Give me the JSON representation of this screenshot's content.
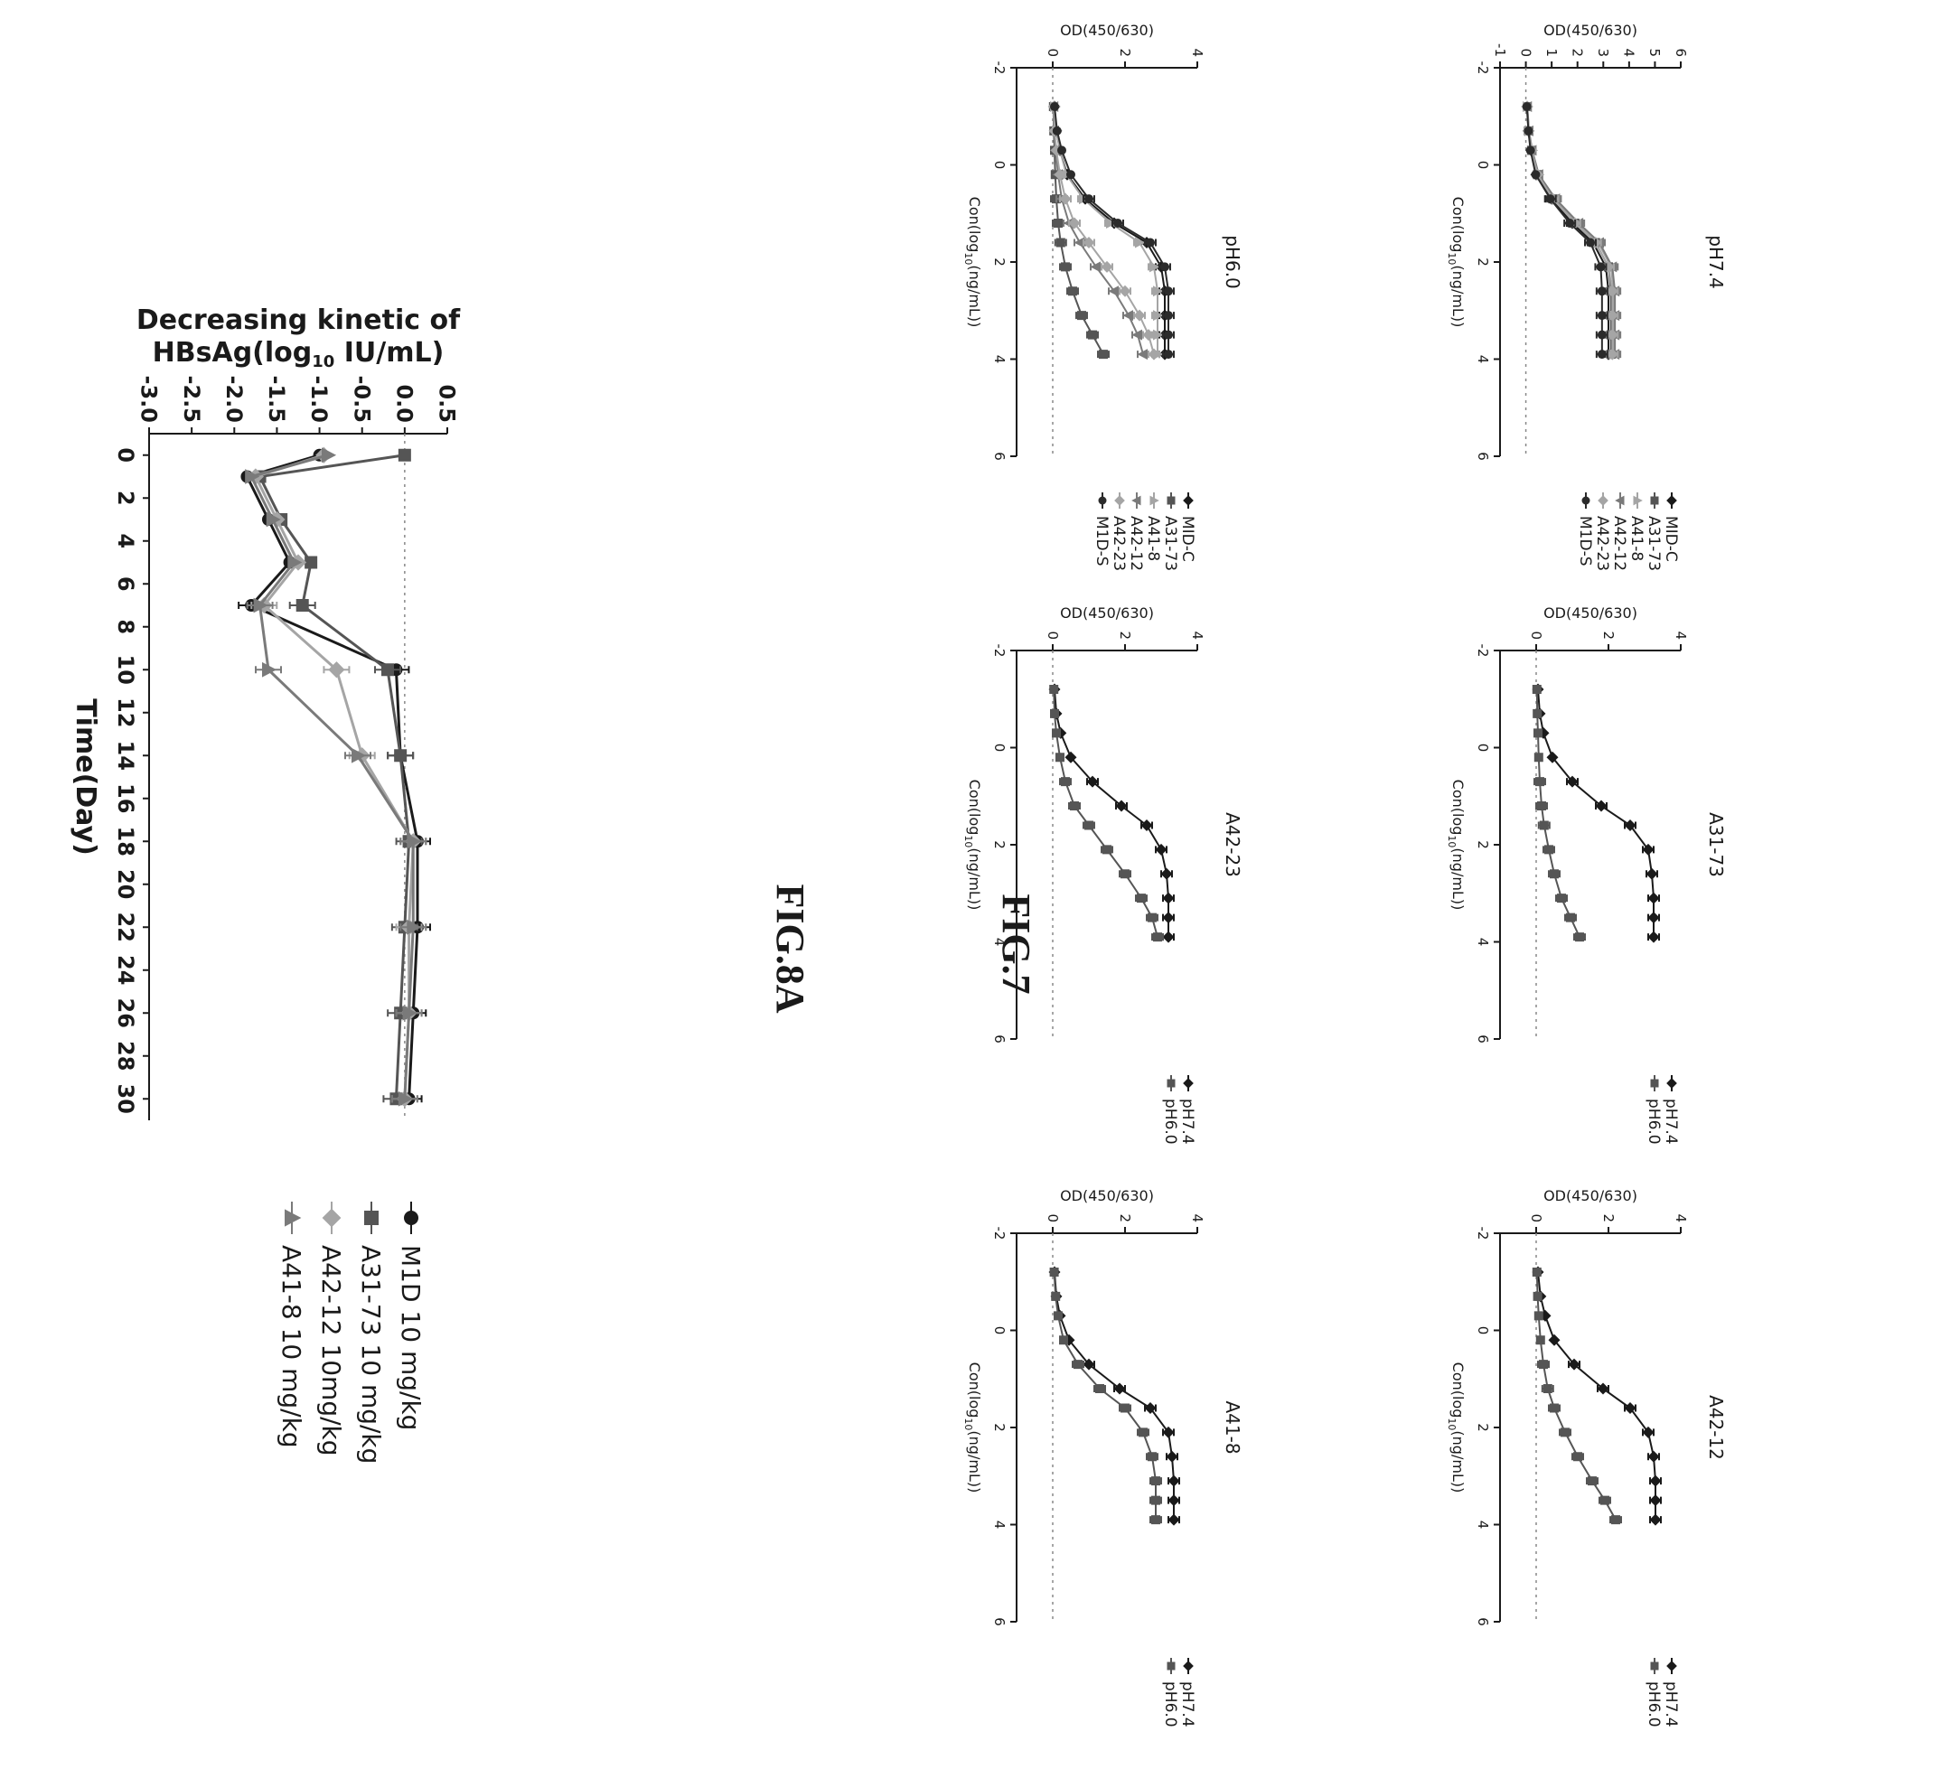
{
  "figures": [
    {
      "id": "fig7",
      "caption": "FIG.7"
    },
    {
      "id": "fig8a",
      "caption": "FIG.8A"
    }
  ],
  "colors": {
    "ink": "#1a1a1a",
    "dark": "#2b2b2b",
    "mid": "#555555",
    "gray": "#7a7a7a",
    "light": "#a5a5a5",
    "zero_line": "#888888"
  },
  "chart_data": [
    {
      "id": "pH7.4",
      "figure": "FIG.7",
      "type": "line",
      "title": "pH7.4",
      "xlabel": "Con(log10(ng/mL))",
      "ylabel": "OD(450/630)",
      "xlim": [
        -2,
        6
      ],
      "ylim": [
        -1,
        6
      ],
      "xticks": [
        "-2",
        "0",
        "2",
        "4",
        "6"
      ],
      "yticks": [
        "-1",
        "0",
        "1",
        "2",
        "3",
        "4",
        "5",
        "6"
      ],
      "x": [
        -1.2,
        -0.7,
        -0.3,
        0.2,
        0.7,
        1.2,
        1.6,
        2.1,
        2.6,
        3.1,
        3.5,
        3.9
      ],
      "series": [
        {
          "name": "MID-C",
          "marker": "diamond",
          "color": "#1a1a1a",
          "values": [
            0.05,
            0.1,
            0.2,
            0.4,
            1.0,
            1.8,
            2.6,
            3.1,
            3.2,
            3.2,
            3.2,
            3.2
          ]
        },
        {
          "name": "A31-73",
          "marker": "square",
          "color": "#555555",
          "values": [
            0.05,
            0.1,
            0.22,
            0.45,
            1.05,
            1.9,
            2.7,
            3.2,
            3.3,
            3.3,
            3.3,
            3.3
          ]
        },
        {
          "name": "A41-8",
          "marker": "triangle-up",
          "color": "#a5a5a5",
          "values": [
            0.05,
            0.12,
            0.25,
            0.5,
            1.1,
            2.0,
            2.8,
            3.3,
            3.4,
            3.4,
            3.4,
            3.4
          ]
        },
        {
          "name": "A42-12",
          "marker": "triangle-down",
          "color": "#7a7a7a",
          "values": [
            0.06,
            0.12,
            0.24,
            0.5,
            1.15,
            2.05,
            2.85,
            3.35,
            3.45,
            3.45,
            3.45,
            3.45
          ]
        },
        {
          "name": "A42-23",
          "marker": "diamond",
          "color": "#a5a5a5",
          "values": [
            0.05,
            0.11,
            0.22,
            0.46,
            1.05,
            1.9,
            2.7,
            3.2,
            3.35,
            3.35,
            3.35,
            3.35
          ]
        },
        {
          "name": "M1D-S",
          "marker": "circle",
          "color": "#2b2b2b",
          "values": [
            0.04,
            0.1,
            0.18,
            0.38,
            0.95,
            1.7,
            2.5,
            2.9,
            2.95,
            2.95,
            2.95,
            2.95
          ]
        }
      ]
    },
    {
      "id": "pH6.0",
      "figure": "FIG.7",
      "type": "line",
      "title": "pH6.0",
      "xlabel": "Con(log10(ng/mL))",
      "ylabel": "OD(450/630)",
      "xlim": [
        -2,
        6
      ],
      "ylim": [
        -1,
        4
      ],
      "xticks": [
        "-2",
        "0",
        "2",
        "4",
        "6"
      ],
      "yticks": [
        "0",
        "2",
        "4"
      ],
      "x": [
        -1.2,
        -0.7,
        -0.3,
        0.2,
        0.7,
        1.2,
        1.6,
        2.1,
        2.6,
        3.1,
        3.5,
        3.9
      ],
      "series": [
        {
          "name": "MID-C",
          "marker": "diamond",
          "color": "#1a1a1a",
          "values": [
            0.05,
            0.1,
            0.2,
            0.4,
            0.9,
            1.7,
            2.6,
            3.0,
            3.1,
            3.1,
            3.1,
            3.1
          ]
        },
        {
          "name": "A31-73",
          "marker": "square",
          "color": "#555555",
          "values": [
            0.02,
            0.03,
            0.05,
            0.07,
            0.1,
            0.15,
            0.22,
            0.35,
            0.55,
            0.8,
            1.1,
            1.4
          ]
        },
        {
          "name": "A41-8",
          "marker": "triangle-up",
          "color": "#a5a5a5",
          "values": [
            0.05,
            0.1,
            0.2,
            0.38,
            0.85,
            1.6,
            2.4,
            2.8,
            2.9,
            2.9,
            2.9,
            2.9
          ]
        },
        {
          "name": "A42-12",
          "marker": "triangle-down",
          "color": "#7a7a7a",
          "values": [
            0.03,
            0.05,
            0.08,
            0.15,
            0.25,
            0.45,
            0.75,
            1.2,
            1.7,
            2.1,
            2.35,
            2.5
          ]
        },
        {
          "name": "A42-23",
          "marker": "diamond",
          "color": "#a5a5a5",
          "values": [
            0.03,
            0.05,
            0.1,
            0.2,
            0.35,
            0.6,
            1.0,
            1.5,
            2.0,
            2.4,
            2.65,
            2.8
          ]
        },
        {
          "name": "M1D-S",
          "marker": "circle",
          "color": "#2b2b2b",
          "values": [
            0.05,
            0.12,
            0.25,
            0.5,
            1.0,
            1.8,
            2.7,
            3.1,
            3.2,
            3.2,
            3.2,
            3.2
          ]
        }
      ]
    },
    {
      "id": "A31-73",
      "figure": "FIG.7",
      "type": "line",
      "title": "A31-73",
      "xlabel": "Con(log10(ng/mL))",
      "ylabel": "OD(450/630)",
      "xlim": [
        -2,
        6
      ],
      "ylim": [
        -1,
        4
      ],
      "xticks": [
        "-2",
        "0",
        "2",
        "4",
        "6"
      ],
      "yticks": [
        "0",
        "2",
        "4"
      ],
      "x": [
        -1.2,
        -0.7,
        -0.3,
        0.2,
        0.7,
        1.2,
        1.6,
        2.1,
        2.6,
        3.1,
        3.5,
        3.9
      ],
      "series": [
        {
          "name": "pH7.4",
          "marker": "diamond",
          "color": "#1a1a1a",
          "values": [
            0.05,
            0.1,
            0.2,
            0.45,
            1.0,
            1.8,
            2.6,
            3.1,
            3.2,
            3.25,
            3.25,
            3.25
          ]
        },
        {
          "name": "pH6.0",
          "marker": "square",
          "color": "#555555",
          "values": [
            0.02,
            0.03,
            0.05,
            0.07,
            0.1,
            0.15,
            0.22,
            0.35,
            0.5,
            0.7,
            0.95,
            1.2
          ]
        }
      ]
    },
    {
      "id": "A42-23",
      "figure": "FIG.7",
      "type": "line",
      "title": "A42-23",
      "xlabel": "Con(log10(ng/mL))",
      "ylabel": "OD(450/630)",
      "xlim": [
        -2,
        6
      ],
      "ylim": [
        -1,
        4
      ],
      "xticks": [
        "-2",
        "0",
        "2",
        "4",
        "6"
      ],
      "yticks": [
        "0",
        "2",
        "4"
      ],
      "x": [
        -1.2,
        -0.7,
        -0.3,
        0.2,
        0.7,
        1.2,
        1.6,
        2.1,
        2.6,
        3.1,
        3.5,
        3.9
      ],
      "series": [
        {
          "name": "pH7.4",
          "marker": "diamond",
          "color": "#1a1a1a",
          "values": [
            0.05,
            0.1,
            0.22,
            0.5,
            1.1,
            1.9,
            2.6,
            3.0,
            3.15,
            3.2,
            3.2,
            3.2
          ]
        },
        {
          "name": "pH6.0",
          "marker": "square",
          "color": "#555555",
          "values": [
            0.03,
            0.05,
            0.1,
            0.2,
            0.35,
            0.6,
            1.0,
            1.5,
            2.0,
            2.45,
            2.75,
            2.9
          ]
        }
      ]
    },
    {
      "id": "A42-12",
      "figure": "FIG.7",
      "type": "line",
      "title": "A42-12",
      "xlabel": "Con(log10(ng/mL))",
      "ylabel": "OD(450/630)",
      "xlim": [
        -2,
        6
      ],
      "ylim": [
        -1,
        4
      ],
      "xticks": [
        "-2",
        "0",
        "2",
        "4",
        "6"
      ],
      "yticks": [
        "0",
        "2",
        "4"
      ],
      "x": [
        -1.2,
        -0.7,
        -0.3,
        0.2,
        0.7,
        1.2,
        1.6,
        2.1,
        2.6,
        3.1,
        3.5,
        3.9
      ],
      "series": [
        {
          "name": "pH7.4",
          "marker": "diamond",
          "color": "#1a1a1a",
          "values": [
            0.05,
            0.12,
            0.25,
            0.5,
            1.05,
            1.85,
            2.6,
            3.1,
            3.25,
            3.3,
            3.3,
            3.3
          ]
        },
        {
          "name": "pH6.0",
          "marker": "square",
          "color": "#555555",
          "values": [
            0.02,
            0.04,
            0.07,
            0.12,
            0.2,
            0.32,
            0.5,
            0.8,
            1.15,
            1.55,
            1.9,
            2.2
          ]
        }
      ]
    },
    {
      "id": "A41-8",
      "figure": "FIG.7",
      "type": "line",
      "title": "A41-8",
      "xlabel": "Con(log10(ng/mL))",
      "ylabel": "OD(450/630)",
      "xlim": [
        -2,
        6
      ],
      "ylim": [
        -1,
        4
      ],
      "xticks": [
        "-2",
        "0",
        "2",
        "4",
        "6"
      ],
      "yticks": [
        "0",
        "2",
        "4"
      ],
      "x": [
        -1.2,
        -0.7,
        -0.3,
        0.2,
        0.7,
        1.2,
        1.6,
        2.1,
        2.6,
        3.1,
        3.5,
        3.9
      ],
      "series": [
        {
          "name": "pH7.4",
          "marker": "diamond",
          "color": "#1a1a1a",
          "values": [
            0.05,
            0.1,
            0.2,
            0.45,
            1.0,
            1.85,
            2.7,
            3.2,
            3.3,
            3.35,
            3.35,
            3.35
          ]
        },
        {
          "name": "pH6.0",
          "marker": "square",
          "color": "#555555",
          "values": [
            0.04,
            0.08,
            0.15,
            0.3,
            0.7,
            1.3,
            2.0,
            2.5,
            2.75,
            2.85,
            2.85,
            2.85
          ]
        }
      ]
    },
    {
      "id": "fig8a",
      "figure": "FIG.8A",
      "type": "line",
      "title": "",
      "xlabel": "Time(Day)",
      "ylabel_line1": "Decreasing kinetic of",
      "ylabel_line2": "HBsAg(log",
      "ylabel_sub": "10",
      "ylabel_line3": " IU/mL)",
      "xlim": [
        -1,
        31
      ],
      "ylim": [
        -3.0,
        0.5
      ],
      "xticks": [
        "0",
        "2",
        "4",
        "6",
        "8",
        "10",
        "12",
        "14",
        "16",
        "18",
        "20",
        "22",
        "24",
        "26",
        "28",
        "30"
      ],
      "yticks": [
        "-3.0",
        "-2.5",
        "-2.0",
        "-1.5",
        "-1.0",
        "-0.5",
        "0.0",
        "0.5"
      ],
      "series": [
        {
          "name": "M1D 10 mg/kg",
          "marker": "circle",
          "color": "#1a1a1a",
          "x": [
            0,
            1,
            3,
            5,
            7,
            10,
            14,
            18,
            22,
            26,
            30
          ],
          "values": [
            -1.0,
            -1.85,
            -1.6,
            -1.35,
            -1.8,
            -0.1,
            -0.05,
            0.15,
            0.15,
            0.1,
            0.05
          ]
        },
        {
          "name": "A31-73 10 mg/kg",
          "marker": "square",
          "color": "#555555",
          "x": [
            0,
            1,
            3,
            5,
            7,
            10,
            14,
            18,
            22,
            26,
            30
          ],
          "values": [
            0.0,
            -1.7,
            -1.45,
            -1.1,
            -1.2,
            -0.2,
            -0.05,
            0.05,
            0.0,
            -0.05,
            -0.1
          ]
        },
        {
          "name": "A42-12 10mg/kg",
          "marker": "diamond",
          "color": "#a5a5a5",
          "x": [
            0,
            1,
            3,
            5,
            7,
            10,
            14,
            18,
            22,
            26,
            30
          ],
          "values": [
            -0.95,
            -1.75,
            -1.5,
            -1.25,
            -1.65,
            -0.8,
            -0.5,
            0.1,
            0.05,
            0.05,
            0.0
          ]
        },
        {
          "name": "A41-8 10 mg/kg",
          "marker": "triangle-up",
          "color": "#7a7a7a",
          "x": [
            0,
            1,
            3,
            5,
            7,
            10,
            14,
            18,
            22,
            26,
            30
          ],
          "values": [
            -0.9,
            -1.8,
            -1.55,
            -1.3,
            -1.7,
            -1.6,
            -0.55,
            0.1,
            0.1,
            0.05,
            0.0
          ]
        }
      ]
    }
  ]
}
